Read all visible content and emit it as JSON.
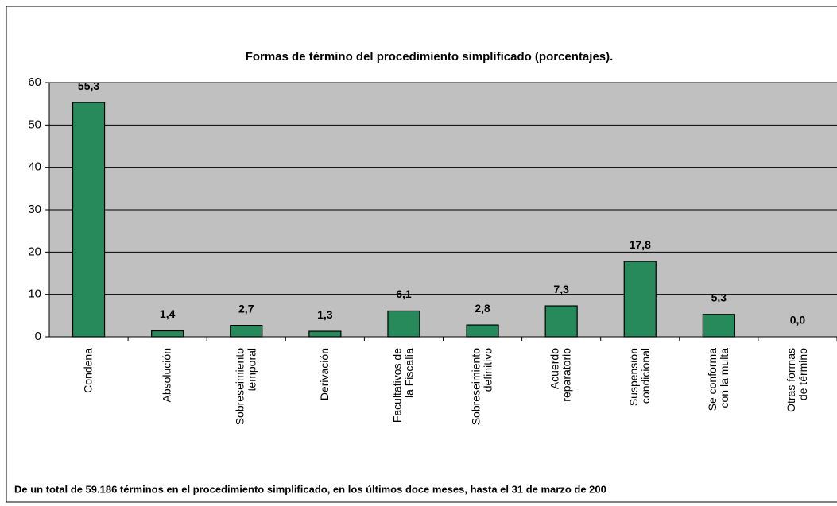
{
  "chart_data": {
    "type": "bar",
    "title": "Formas de término del procedimiento simplificado (porcentajes).",
    "categories": [
      "Condena",
      "Absolución",
      "Sobreseimiento\ntemporal",
      "Derivación",
      "Facultativos de\nla Fiscalía",
      "Sobreseimiento\ndefinitivo",
      "Acuerdo\nreparatorio",
      "Suspensión\ncondicional",
      "Se conforma\ncon la multa",
      "Otras formas\nde término"
    ],
    "values": [
      55.3,
      1.4,
      2.7,
      1.3,
      6.1,
      2.8,
      7.3,
      17.8,
      5.3,
      0.0
    ],
    "value_labels": [
      "55,3",
      "1,4",
      "2,7",
      "1,3",
      "6,1",
      "2,8",
      "7,3",
      "17,8",
      "5,3",
      "0,0"
    ],
    "color": "#278a5b",
    "ylim": [
      0,
      60
    ],
    "yticks": [
      0,
      10,
      20,
      30,
      40,
      50,
      60
    ],
    "grid": true,
    "note": "De un total de 59.186 términos en el procedimiento simplificado, en los últimos doce meses, hasta el 31 de marzo de 200"
  }
}
